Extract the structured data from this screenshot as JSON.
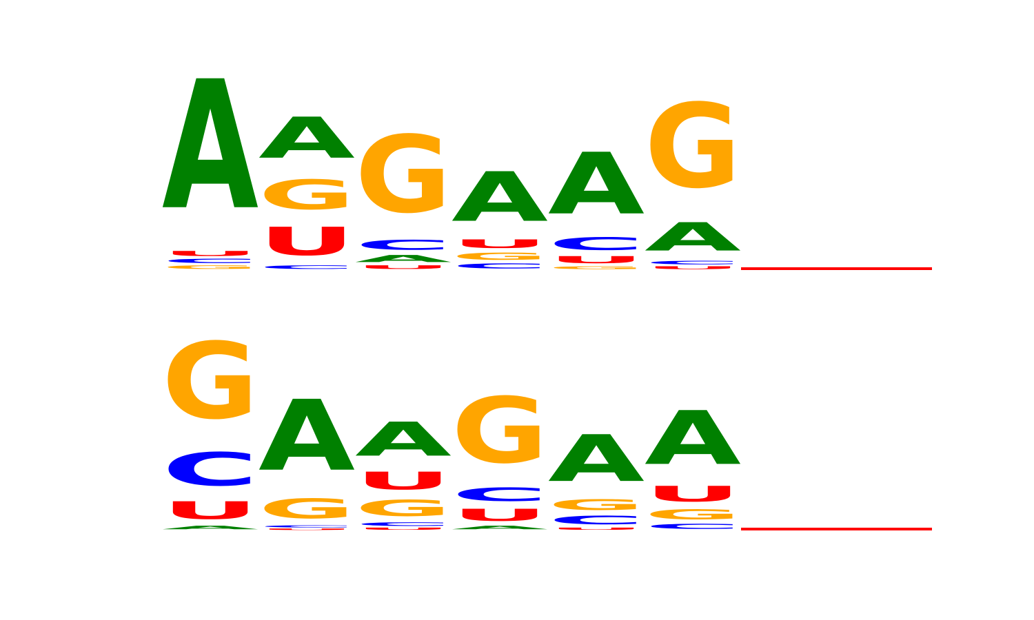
{
  "colors": {
    "A": "#008000",
    "C": "#0000ff",
    "G": "#ffa500",
    "U": "#ff0000"
  },
  "chart_data": [
    {
      "type": "sequence-logo",
      "alphabet": [
        "A",
        "C",
        "G",
        "U"
      ],
      "columns": [
        {
          "position": 1,
          "letters": [
            {
              "base": "G",
              "height": 0.05
            },
            {
              "base": "C",
              "height": 0.06
            },
            {
              "base": "U",
              "height": 0.07
            },
            {
              "base": "A",
              "height": 1.82
            }
          ]
        },
        {
          "position": 2,
          "letters": [
            {
              "base": "C",
              "height": 0.05
            },
            {
              "base": "U",
              "height": 0.4
            },
            {
              "base": "G",
              "height": 0.42
            },
            {
              "base": "A",
              "height": 0.58
            }
          ]
        },
        {
          "position": 3,
          "letters": [
            {
              "base": "U",
              "height": 0.05
            },
            {
              "base": "A",
              "height": 0.1
            },
            {
              "base": "C",
              "height": 0.14
            },
            {
              "base": "G",
              "height": 1.09
            }
          ]
        },
        {
          "position": 4,
          "letters": [
            {
              "base": "C",
              "height": 0.07
            },
            {
              "base": "G",
              "height": 0.1
            },
            {
              "base": "U",
              "height": 0.12
            },
            {
              "base": "A",
              "height": 0.7
            }
          ]
        },
        {
          "position": 5,
          "letters": [
            {
              "base": "G",
              "height": 0.04
            },
            {
              "base": "U",
              "height": 0.1
            },
            {
              "base": "C",
              "height": 0.18
            },
            {
              "base": "A",
              "height": 0.87
            }
          ]
        },
        {
          "position": 6,
          "letters": [
            {
              "base": "U",
              "height": 0.04
            },
            {
              "base": "C",
              "height": 0.05
            },
            {
              "base": "A",
              "height": 0.4
            },
            {
              "base": "G",
              "height": 1.19
            }
          ]
        },
        {
          "position": 7,
          "letters": []
        },
        {
          "position": 8,
          "letters": []
        }
      ]
    },
    {
      "type": "sequence-logo",
      "alphabet": [
        "A",
        "C",
        "G",
        "U"
      ],
      "columns": [
        {
          "position": 1,
          "letters": [
            {
              "base": "A",
              "height": 0.05
            },
            {
              "base": "U",
              "height": 0.25
            },
            {
              "base": "C",
              "height": 0.47
            },
            {
              "base": "G",
              "height": 1.08
            }
          ]
        },
        {
          "position": 2,
          "letters": [
            {
              "base": "U",
              "height": 0.02
            },
            {
              "base": "C",
              "height": 0.03
            },
            {
              "base": "G",
              "height": 0.28
            },
            {
              "base": "A",
              "height": 1.0
            }
          ]
        },
        {
          "position": 3,
          "letters": [
            {
              "base": "U",
              "height": 0.03
            },
            {
              "base": "C",
              "height": 0.05
            },
            {
              "base": "G",
              "height": 0.23
            },
            {
              "base": "U",
              "height": 0.25
            },
            {
              "base": "A",
              "height": 0.48
            }
          ]
        },
        {
          "position": 4,
          "letters": [
            {
              "base": "A",
              "height": 0.05
            },
            {
              "base": "U",
              "height": 0.17
            },
            {
              "base": "C",
              "height": 0.19
            },
            {
              "base": "G",
              "height": 0.93
            }
          ]
        },
        {
          "position": 5,
          "letters": [
            {
              "base": "U",
              "height": 0.03
            },
            {
              "base": "C",
              "height": 0.12
            },
            {
              "base": "G",
              "height": 0.15
            },
            {
              "base": "A",
              "height": 0.66
            }
          ]
        },
        {
          "position": 6,
          "letters": [
            {
              "base": "C",
              "height": 0.07
            },
            {
              "base": "G",
              "height": 0.14
            },
            {
              "base": "U",
              "height": 0.22
            },
            {
              "base": "A",
              "height": 0.76
            }
          ]
        },
        {
          "position": 7,
          "letters": []
        },
        {
          "position": 8,
          "letters": []
        }
      ]
    }
  ]
}
